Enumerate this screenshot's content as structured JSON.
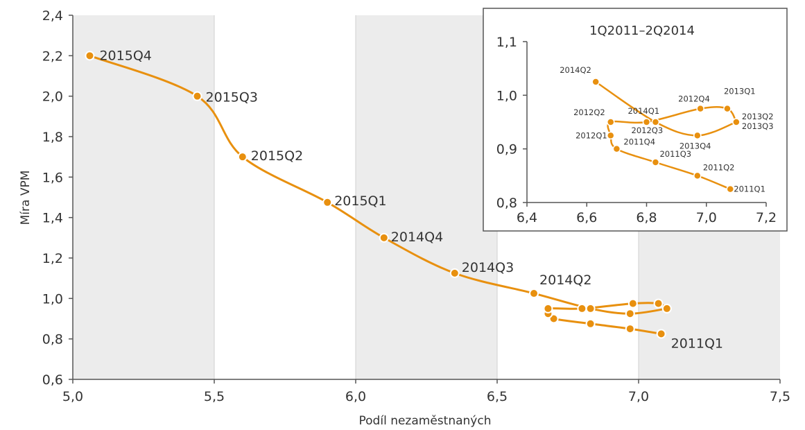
{
  "chart_data": [
    {
      "type": "line",
      "xlabel": "Podíl nezaměstnaných",
      "ylabel": "Míra VPM",
      "xlim": [
        5.0,
        7.5
      ],
      "ylim": [
        0.6,
        2.4
      ],
      "x_ticks": [
        "5,0",
        "5,5",
        "6,0",
        "6,5",
        "7,0",
        "7,5"
      ],
      "y_ticks": [
        "0,6",
        "0,8",
        "1,0",
        "1,2",
        "1,4",
        "1,6",
        "1,8",
        "2,0",
        "2,2",
        "2,4"
      ],
      "shaded_bands": [
        [
          5.0,
          5.5
        ],
        [
          6.0,
          6.5
        ],
        [
          7.0,
          7.5
        ]
      ],
      "grid": false,
      "series": [
        {
          "color": "#e8900f",
          "points": [
            {
              "label": "2011Q1",
              "x": 7.08,
              "y": 0.825
            },
            {
              "label": "2011Q2",
              "x": 6.97,
              "y": 0.85
            },
            {
              "label": "2011Q3",
              "x": 6.83,
              "y": 0.875
            },
            {
              "label": "2011Q4",
              "x": 6.7,
              "y": 0.9
            },
            {
              "label": "2012Q1",
              "x": 6.68,
              "y": 0.925
            },
            {
              "label": "2012Q2",
              "x": 6.68,
              "y": 0.95
            },
            {
              "label": "2012Q3",
              "x": 6.8,
              "y": 0.95
            },
            {
              "label": "2012Q4",
              "x": 6.98,
              "y": 0.975
            },
            {
              "label": "2013Q1",
              "x": 7.07,
              "y": 0.975
            },
            {
              "label": "2013Q2",
              "x": 7.1,
              "y": 0.95
            },
            {
              "label": "2013Q3",
              "x": 7.1,
              "y": 0.95
            },
            {
              "label": "2013Q4",
              "x": 6.97,
              "y": 0.925
            },
            {
              "label": "2014Q1",
              "x": 6.83,
              "y": 0.95
            },
            {
              "label": "2014Q2",
              "x": 6.63,
              "y": 1.025
            },
            {
              "label": "2014Q3",
              "x": 6.35,
              "y": 1.125
            },
            {
              "label": "2014Q4",
              "x": 6.1,
              "y": 1.3
            },
            {
              "label": "2015Q1",
              "x": 5.9,
              "y": 1.475
            },
            {
              "label": "2015Q2",
              "x": 5.6,
              "y": 1.7
            },
            {
              "label": "2015Q3",
              "x": 5.44,
              "y": 2.0
            },
            {
              "label": "2015Q4",
              "x": 5.06,
              "y": 2.2
            }
          ]
        }
      ],
      "point_labels_shown": [
        "2015Q4",
        "2015Q3",
        "2015Q2",
        "2015Q1",
        "2014Q4",
        "2014Q3",
        "2014Q2",
        "2011Q1"
      ]
    },
    {
      "type": "line",
      "title": "1Q2011–2Q2014",
      "xlim": [
        6.4,
        7.2
      ],
      "ylim": [
        0.8,
        1.1
      ],
      "x_ticks": [
        "6,4",
        "6,6",
        "6,8",
        "7,0",
        "7,2"
      ],
      "y_ticks": [
        "0,8",
        "0,9",
        "1,0",
        "1,1"
      ],
      "legend": "inset at top-right of main chart",
      "series": [
        {
          "color": "#e8900f",
          "points": [
            {
              "label": "2011Q1",
              "x": 7.08,
              "y": 0.825
            },
            {
              "label": "2011Q2",
              "x": 6.97,
              "y": 0.85
            },
            {
              "label": "2011Q3",
              "x": 6.83,
              "y": 0.875
            },
            {
              "label": "2011Q4",
              "x": 6.7,
              "y": 0.9
            },
            {
              "label": "2012Q1",
              "x": 6.68,
              "y": 0.925
            },
            {
              "label": "2012Q2",
              "x": 6.68,
              "y": 0.95
            },
            {
              "label": "2012Q3",
              "x": 6.8,
              "y": 0.95
            },
            {
              "label": "2012Q4",
              "x": 6.98,
              "y": 0.975
            },
            {
              "label": "2013Q1",
              "x": 7.07,
              "y": 0.975
            },
            {
              "label": "2013Q2",
              "x": 7.1,
              "y": 0.95
            },
            {
              "label": "2013Q3",
              "x": 7.1,
              "y": 0.95
            },
            {
              "label": "2013Q4",
              "x": 6.97,
              "y": 0.925
            },
            {
              "label": "2014Q1",
              "x": 6.83,
              "y": 0.95
            },
            {
              "label": "2014Q2",
              "x": 6.63,
              "y": 1.025
            }
          ]
        }
      ]
    }
  ]
}
